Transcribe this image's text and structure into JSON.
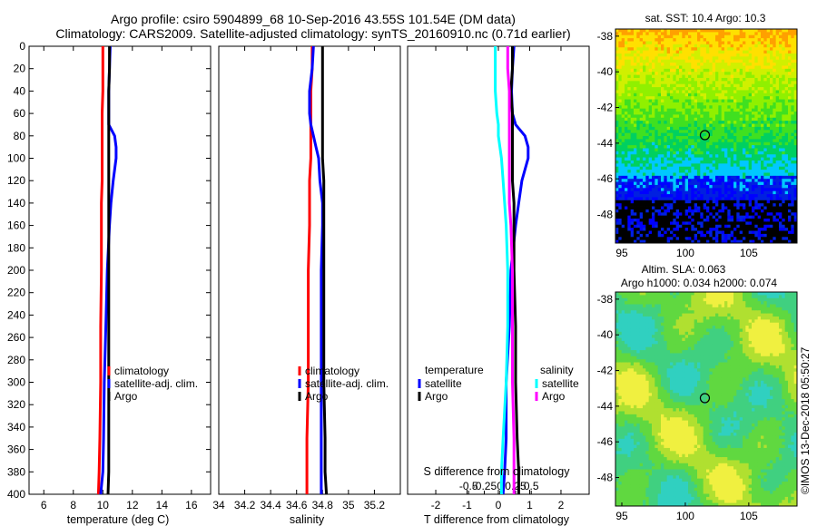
{
  "title_line1": "Argo profile: csiro 5904899_68 10-Sep-2016 43.55S 101.54E (DM data)",
  "title_line2": "Climatology: CARS2009. Satellite-adjusted climatology: synTS_20160910.nc (0.71d earlier)",
  "chart_data": [
    {
      "type": "line",
      "id": "temperature",
      "xlabel": "temperature (deg C)",
      "ylabel": "",
      "xlim": [
        5,
        17.3
      ],
      "ylim": [
        400,
        0
      ],
      "xticks": [
        "6",
        "8",
        "10",
        "12",
        "14",
        "16"
      ],
      "xtick_values": [
        6,
        8,
        10,
        12,
        14,
        16
      ],
      "yticks": [
        0,
        20,
        40,
        60,
        80,
        100,
        120,
        140,
        160,
        180,
        200,
        220,
        240,
        260,
        280,
        300,
        320,
        340,
        360,
        380,
        400
      ],
      "depth": [
        0,
        20,
        40,
        60,
        70,
        80,
        90,
        100,
        120,
        140,
        160,
        200,
        250,
        300,
        350,
        380,
        400
      ],
      "series": [
        {
          "name": "climatology",
          "color": "#ff0000",
          "values": [
            10.0,
            10.0,
            10.0,
            9.95,
            9.95,
            9.95,
            9.95,
            9.95,
            9.95,
            9.9,
            9.9,
            9.9,
            9.85,
            9.85,
            9.8,
            9.75,
            9.7
          ]
        },
        {
          "name": "satellite-adj. clim.",
          "color": "#0000ff",
          "values": [
            10.5,
            10.45,
            10.4,
            10.4,
            10.4,
            10.8,
            10.9,
            10.9,
            10.7,
            10.55,
            10.45,
            10.3,
            10.2,
            10.1,
            10.05,
            10.0,
            9.85
          ]
        },
        {
          "name": "Argo",
          "color": "#000000",
          "values": [
            10.45,
            10.45,
            10.4,
            10.4,
            10.4,
            10.4,
            10.4,
            10.4,
            10.4,
            10.4,
            10.4,
            10.4,
            10.4,
            10.4,
            10.4,
            10.4,
            10.35
          ]
        }
      ],
      "legend": [
        "climatology",
        "satellite-adj. clim.",
        "Argo"
      ]
    },
    {
      "type": "line",
      "id": "salinity",
      "xlabel": "salinity",
      "xlim": [
        34.0,
        35.4
      ],
      "ylim": [
        400,
        0
      ],
      "xticks": [
        "34",
        "34.2",
        "34.4",
        "34.6",
        "34.8",
        "35",
        "35.2"
      ],
      "xtick_values": [
        34.0,
        34.2,
        34.4,
        34.6,
        34.8,
        35.0,
        35.2
      ],
      "depth": [
        0,
        20,
        40,
        60,
        70,
        80,
        90,
        100,
        120,
        140,
        160,
        200,
        250,
        300,
        350,
        380,
        400
      ],
      "series": [
        {
          "name": "climatology",
          "color": "#ff0000",
          "values": [
            34.72,
            34.72,
            34.71,
            34.71,
            34.71,
            34.71,
            34.71,
            34.71,
            34.7,
            34.7,
            34.7,
            34.69,
            34.69,
            34.69,
            34.68,
            34.68,
            34.68
          ]
        },
        {
          "name": "satellite-adj. clim.",
          "color": "#0000ff",
          "values": [
            34.73,
            34.72,
            34.7,
            34.7,
            34.71,
            34.73,
            34.75,
            34.77,
            34.78,
            34.8,
            34.8,
            34.79,
            34.79,
            34.79,
            34.79,
            34.79,
            34.79
          ]
        },
        {
          "name": "Argo",
          "color": "#000000",
          "values": [
            34.8,
            34.8,
            34.8,
            34.8,
            34.8,
            34.8,
            34.8,
            34.8,
            34.81,
            34.81,
            34.81,
            34.81,
            34.81,
            34.81,
            34.82,
            34.82,
            34.83
          ]
        }
      ],
      "legend": [
        "climatology",
        "satellite-adj. clim.",
        "Argo"
      ]
    },
    {
      "type": "line",
      "id": "difference",
      "xlabel": "T difference from climatology",
      "xlim": [
        -2.9,
        2.9
      ],
      "ylim": [
        400,
        0
      ],
      "xticks": [
        "-2",
        "-1",
        "0",
        "1",
        "2"
      ],
      "xtick_values": [
        -2,
        -1,
        0,
        1,
        2
      ],
      "top_axis_label": "S difference from climatology",
      "top_xticks": [
        "-0.5",
        "-0.25",
        "0",
        "0.25",
        "0.5"
      ],
      "top_xtick_values": [
        -0.5,
        -0.25,
        0,
        0.25,
        0.5
      ],
      "depth": [
        0,
        20,
        40,
        60,
        70,
        80,
        90,
        100,
        120,
        140,
        160,
        200,
        250,
        300,
        350,
        380,
        400
      ],
      "series": [
        {
          "name": "temperature satellite",
          "color": "#0000ff",
          "values": [
            0.5,
            0.45,
            0.42,
            0.45,
            0.55,
            0.85,
            0.95,
            0.95,
            0.75,
            0.65,
            0.55,
            0.4,
            0.35,
            0.25,
            0.25,
            0.2,
            0.15
          ]
        },
        {
          "name": "temperature Argo",
          "color": "#000000",
          "values": [
            0.45,
            0.45,
            0.4,
            0.45,
            0.45,
            0.45,
            0.45,
            0.45,
            0.45,
            0.5,
            0.5,
            0.5,
            0.55,
            0.55,
            0.6,
            0.65,
            0.65
          ]
        },
        {
          "name": "salinity satellite",
          "color": "#00ffff",
          "values": [
            -0.1,
            -0.1,
            -0.1,
            -0.05,
            0.0,
            0.0,
            0.05,
            0.1,
            0.15,
            0.2,
            0.25,
            0.3,
            0.3,
            0.25,
            0.15,
            0.1,
            0.1
          ]
        },
        {
          "name": "salinity Argo",
          "color": "#ff00ff",
          "values": [
            0.3,
            0.3,
            0.35,
            0.35,
            0.35,
            0.35,
            0.35,
            0.35,
            0.35,
            0.35,
            0.4,
            0.45,
            0.45,
            0.45,
            0.5,
            0.5,
            0.5
          ]
        }
      ],
      "legend_headers": [
        "temperature",
        "salinity"
      ],
      "legend": [
        "satellite",
        "Argo",
        "satellite",
        "Argo"
      ]
    }
  ],
  "maps": [
    {
      "id": "sst-map",
      "title": "sat. SST: 10.4 Argo: 10.3",
      "yticks": [
        "-38",
        "-40",
        "-42",
        "-44",
        "-46",
        "-48"
      ],
      "ytick_values": [
        -38,
        -40,
        -42,
        -44,
        -46,
        -48
      ],
      "xticks": [
        "95",
        "100",
        "105"
      ],
      "xtick_values": [
        95,
        100,
        105
      ],
      "xlim": [
        94.5,
        108.8
      ],
      "ylim": [
        -37.6,
        -49.6
      ],
      "marker": {
        "lon": 101.54,
        "lat": -43.55
      }
    },
    {
      "id": "sla-map",
      "title": "Altim. SLA: 0.063",
      "title2": "Argo h1000: 0.034 h2000: 0.074",
      "yticks": [
        "-38",
        "-40",
        "-42",
        "-44",
        "-46",
        "-48"
      ],
      "ytick_values": [
        -38,
        -40,
        -42,
        -44,
        -46,
        -48
      ],
      "xticks": [
        "95",
        "100",
        "105"
      ],
      "xtick_values": [
        95,
        100,
        105
      ],
      "xlim": [
        94.5,
        108.8
      ],
      "ylim": [
        -37.6,
        -49.6
      ],
      "marker": {
        "lon": 101.54,
        "lat": -43.55
      }
    }
  ],
  "watermark": "©IMOS 13-Dec-2018 05:50:27"
}
